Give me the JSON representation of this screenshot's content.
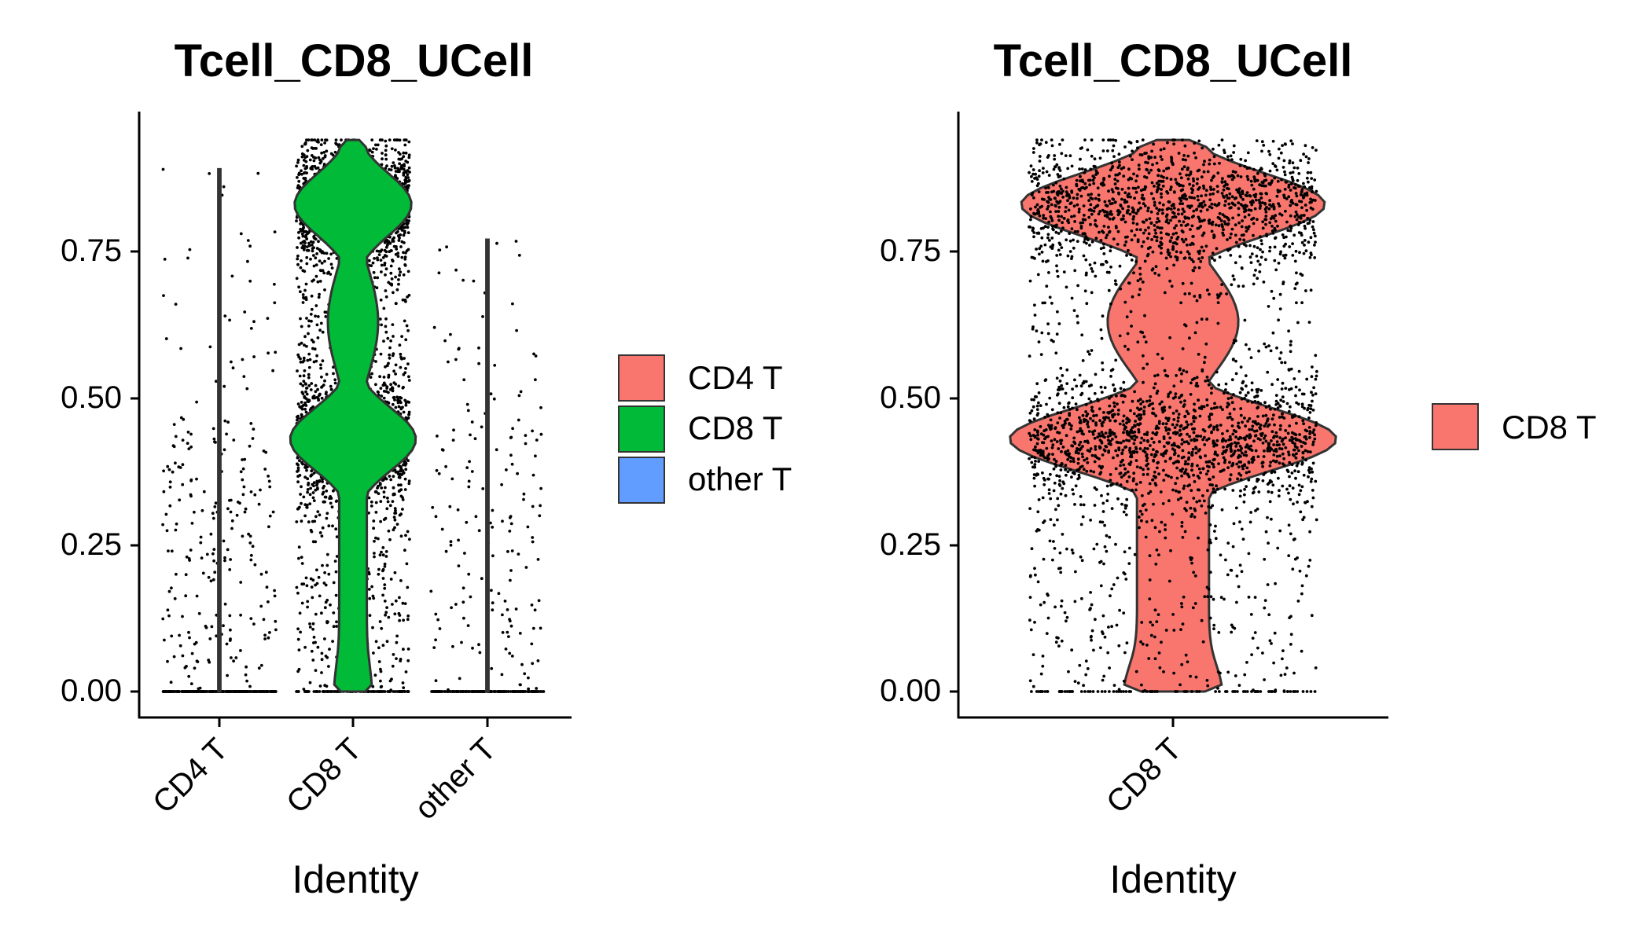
{
  "chart_data": [
    {
      "type": "violin",
      "title": "Tcell_CD8_UCell",
      "xlabel": "Identity",
      "ylabel": "",
      "ylim": [
        -0.045,
        0.985
      ],
      "yticks": [
        "0.00",
        "0.25",
        "0.50",
        "0.75"
      ],
      "ytick_values": [
        0,
        0.25,
        0.5,
        0.75
      ],
      "categories": [
        "CD4 T",
        "CD8 T",
        "other T"
      ],
      "legend": {
        "placement": "right",
        "entries": [
          "CD4 T",
          "CD8 T",
          "other T"
        ]
      },
      "colors": {
        "CD4 T": "#F8766D",
        "CD8 T": "#00BA38",
        "other T": "#619CFF"
      },
      "series": [
        {
          "name": "CD4 T",
          "y_max": 0.89,
          "zero_fraction": 0.55,
          "points_estimate": 520
        },
        {
          "name": "CD8 T",
          "y_max": 0.94,
          "modes": [
            0.0,
            0.43,
            0.83
          ],
          "points_estimate": 3300
        },
        {
          "name": "other T",
          "y_max": 0.77,
          "zero_fraction": 0.55,
          "points_estimate": 360
        }
      ]
    },
    {
      "type": "violin",
      "title": "Tcell_CD8_UCell",
      "xlabel": "Identity",
      "ylabel": "",
      "ylim": [
        -0.045,
        0.985
      ],
      "yticks": [
        "0.00",
        "0.25",
        "0.50",
        "0.75"
      ],
      "ytick_values": [
        0,
        0.25,
        0.5,
        0.75
      ],
      "categories": [
        "CD8 T"
      ],
      "legend": {
        "placement": "right",
        "entries": [
          "CD8 T"
        ]
      },
      "colors": {
        "CD8 T": "#F8766D"
      },
      "series": [
        {
          "name": "CD8 T",
          "y_max": 0.94,
          "modes": [
            0.0,
            0.43,
            0.83
          ],
          "points_estimate": 3300
        }
      ]
    }
  ]
}
